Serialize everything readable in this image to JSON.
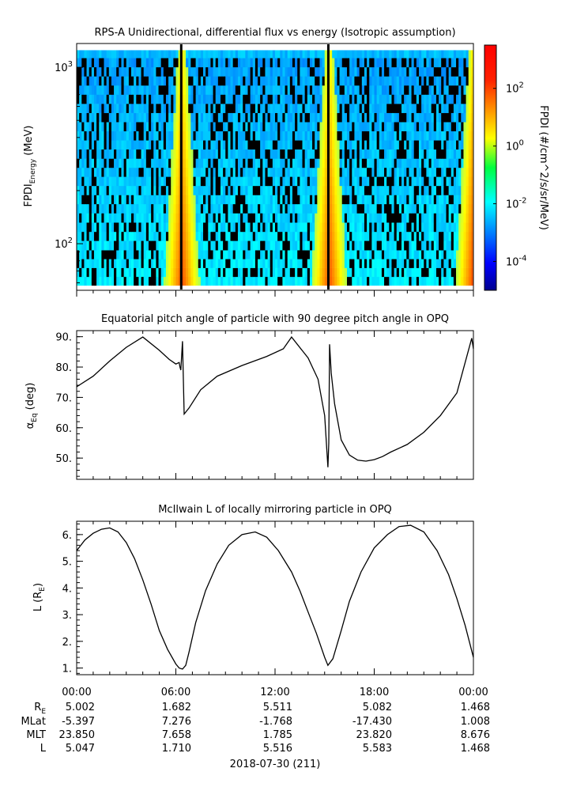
{
  "chart_data": [
    {
      "type": "heatmap",
      "title": "RPS-A Unidirectional, differential flux vs energy (Isotropic assumption)",
      "ylabel": "FPDI",
      "ylabel_sub": "Energy",
      "ylabel_unit": "(MeV)",
      "yscale": "log",
      "ylim": [
        55,
        1350
      ],
      "yticks": [
        {
          "base": "10",
          "exp": "2",
          "value": 100
        },
        {
          "base": "10",
          "exp": "3",
          "value": 1000
        }
      ],
      "xlim_hours": [
        0,
        24
      ],
      "energy_bins_mev": [
        58,
        65,
        73,
        82,
        92,
        104,
        117,
        132,
        149,
        168,
        189,
        213,
        240,
        270,
        304,
        343,
        386,
        435,
        490,
        552,
        622,
        701,
        790,
        890,
        1003,
        1130,
        1250
      ],
      "high_flux_times_hours": [
        6.3,
        15.2,
        23.9
      ],
      "colorbar": {
        "label": "FPDI (#/cm^2/s/sr/MeV)",
        "log_range": [
          -5,
          3.5
        ],
        "ticks": [
          {
            "base": "10",
            "exp": "-4",
            "value": -4
          },
          {
            "base": "10",
            "exp": "-2",
            "value": -2
          },
          {
            "base": "10",
            "exp": "0",
            "value": 0
          },
          {
            "base": "10",
            "exp": "2",
            "value": 2
          }
        ]
      }
    },
    {
      "type": "line",
      "title": "Equatorial pitch angle of particle with 90 degree pitch angle in OPQ",
      "ylabel": "α",
      "ylabel_sub": "Eq",
      "ylabel_unit": "(deg)",
      "ylim": [
        43,
        92
      ],
      "yticks": [
        "50.",
        "60.",
        "70.",
        "80.",
        "90."
      ],
      "x": [
        0,
        1,
        2,
        3,
        4,
        5,
        5.6,
        6,
        6.2,
        6.25,
        6.3,
        6.4,
        6.5,
        6.8,
        7.5,
        8.5,
        10,
        11.5,
        12.5,
        13,
        14,
        14.6,
        15.0,
        15.2,
        15.25,
        15.3,
        15.4,
        15.6,
        16,
        16.5,
        17,
        17.5,
        18,
        18.5,
        19,
        20,
        21,
        22,
        23,
        23.9,
        24
      ],
      "y": [
        73.5,
        77,
        82,
        86.5,
        89.9,
        85.5,
        82.5,
        81,
        81.5,
        80,
        79,
        88.5,
        64.5,
        66.5,
        72.5,
        77,
        80.5,
        83.5,
        86,
        89.9,
        83,
        76,
        64,
        47,
        55,
        87.5,
        78,
        68,
        56,
        51,
        49.3,
        49,
        49.5,
        50.5,
        52,
        54.5,
        58.5,
        64,
        71.5,
        89.5,
        86
      ]
    },
    {
      "type": "line",
      "title": "McIlwain L of locally mirroring particle in OPQ",
      "ylabel": "L",
      "ylabel_paren": "R",
      "ylabel_sub": "E",
      "ylim": [
        0.75,
        6.5
      ],
      "yticks": [
        "1.",
        "2.",
        "3.",
        "4.",
        "5.",
        "6."
      ],
      "x": [
        0,
        0.5,
        1,
        1.5,
        2,
        2.5,
        3,
        3.5,
        4,
        4.5,
        5,
        5.5,
        6,
        6.2,
        6.4,
        6.6,
        6.8,
        7.2,
        7.8,
        8.5,
        9.2,
        10,
        10.8,
        11.5,
        12.2,
        13,
        13.5,
        14,
        14.5,
        15,
        15.2,
        15.5,
        16,
        16.5,
        17.2,
        18,
        18.8,
        19.5,
        20.2,
        21,
        21.8,
        22.5,
        23,
        23.5,
        24
      ],
      "y": [
        5.4,
        5.8,
        6.05,
        6.2,
        6.25,
        6.1,
        5.7,
        5.1,
        4.3,
        3.4,
        2.4,
        1.7,
        1.15,
        1.0,
        0.96,
        1.1,
        1.6,
        2.7,
        3.9,
        4.9,
        5.6,
        6.0,
        6.1,
        5.9,
        5.4,
        4.6,
        3.9,
        3.1,
        2.3,
        1.4,
        1.1,
        1.35,
        2.4,
        3.5,
        4.6,
        5.5,
        6.0,
        6.3,
        6.35,
        6.1,
        5.4,
        4.5,
        3.6,
        2.6,
        1.4
      ]
    }
  ],
  "x_axis": {
    "tick_labels": [
      "00:00",
      "06:00",
      "12:00",
      "18:00",
      "00:00"
    ],
    "date": "2018-07-30 (211)"
  },
  "ephemeris": {
    "labels": [
      "R",
      "MLat",
      "MLT",
      "L"
    ],
    "re_sub": "E",
    "rows": [
      [
        "5.002",
        "1.682",
        "5.511",
        "5.082",
        "1.468"
      ],
      [
        "-5.397",
        "7.276",
        "-1.768",
        "-17.430",
        "1.008"
      ],
      [
        "23.850",
        "7.658",
        "1.785",
        "23.820",
        "8.676"
      ],
      [
        "5.047",
        "1.710",
        "5.516",
        "5.583",
        "1.468"
      ]
    ]
  }
}
